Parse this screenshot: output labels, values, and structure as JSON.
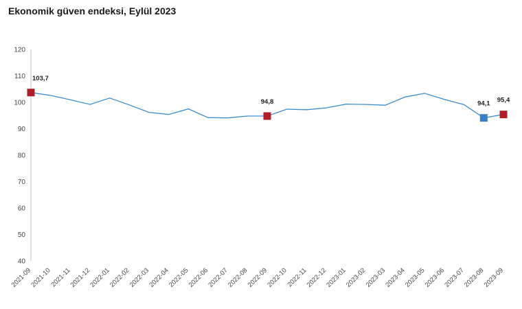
{
  "chart_data": {
    "type": "line",
    "title": "Ekonomik güven endeksi, Eylül 2023",
    "xlabel": "",
    "ylabel": "",
    "ylim": [
      40,
      120
    ],
    "yticks": [
      40,
      50,
      60,
      70,
      80,
      90,
      100,
      110,
      120
    ],
    "grid": false,
    "categories": [
      "2021-09",
      "2021-10",
      "2021-11",
      "2021-12",
      "2022-01",
      "2022-02",
      "2022-03",
      "2022-04",
      "2022-05",
      "2022-06",
      "2022-07",
      "2022-08",
      "2022-09",
      "2022-10",
      "2022-11",
      "2022-12",
      "2023-01",
      "2023-02",
      "2023-03",
      "2023-04",
      "2023-05",
      "2023-06",
      "2023-07",
      "2023-08",
      "2023-09"
    ],
    "series": [
      {
        "values": [
          103.7,
          102.6,
          101.0,
          99.2,
          101.6,
          99.0,
          96.2,
          95.4,
          97.5,
          94.2,
          94.1,
          94.8,
          94.8,
          97.4,
          97.2,
          97.9,
          99.3,
          99.2,
          98.9,
          102.0,
          103.4,
          101.1,
          99.1,
          94.1,
          95.4
        ],
        "color": "#3a8ccf"
      }
    ],
    "markers": [
      {
        "index": 0,
        "label": "103,7",
        "color": "#b01e28"
      },
      {
        "index": 12,
        "label": "94,8",
        "color": "#b01e28"
      },
      {
        "index": 23,
        "label": "94,1",
        "color": "#3a7fc1"
      },
      {
        "index": 24,
        "label": "95,4",
        "color": "#b01e28"
      }
    ]
  }
}
